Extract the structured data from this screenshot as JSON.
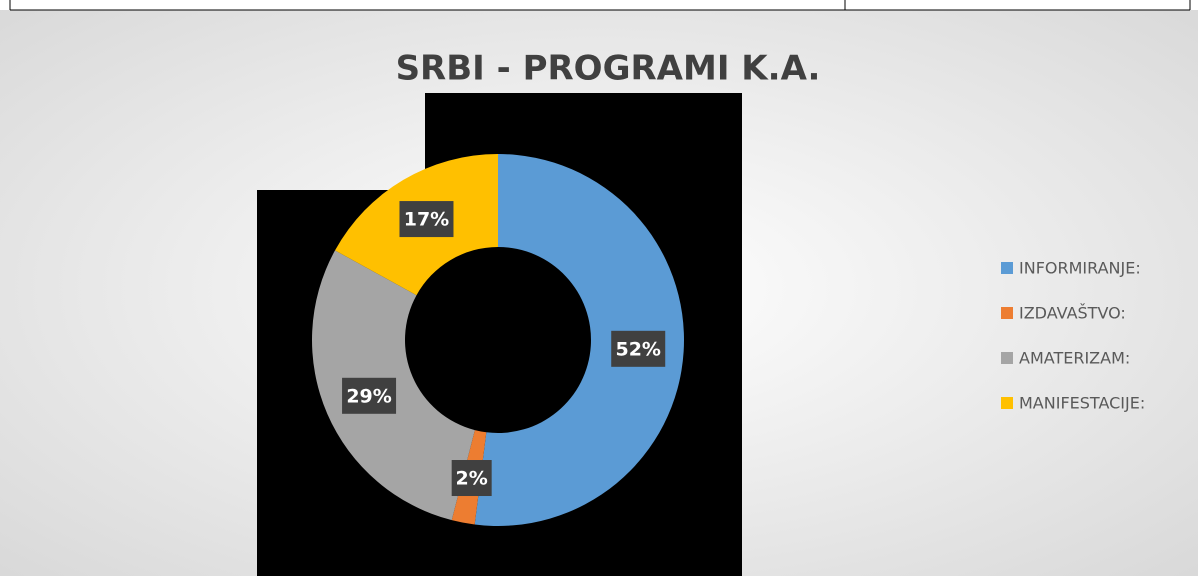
{
  "chart_data": {
    "type": "pie",
    "title": "SRBI - PROGRAMI K.A.",
    "categories": [
      "INFORMIRANJE:",
      "IZDAVAŠTVO:",
      "AMATERIZAM:",
      "MANIFESTACIJE:"
    ],
    "values": [
      52,
      2,
      29,
      17
    ],
    "value_labels": [
      "52%",
      "2%",
      "29%",
      "17%"
    ],
    "colors": [
      "#5b9bd5",
      "#ed7d31",
      "#a5a5a5",
      "#ffc000"
    ],
    "donut": true,
    "legend": "right"
  }
}
